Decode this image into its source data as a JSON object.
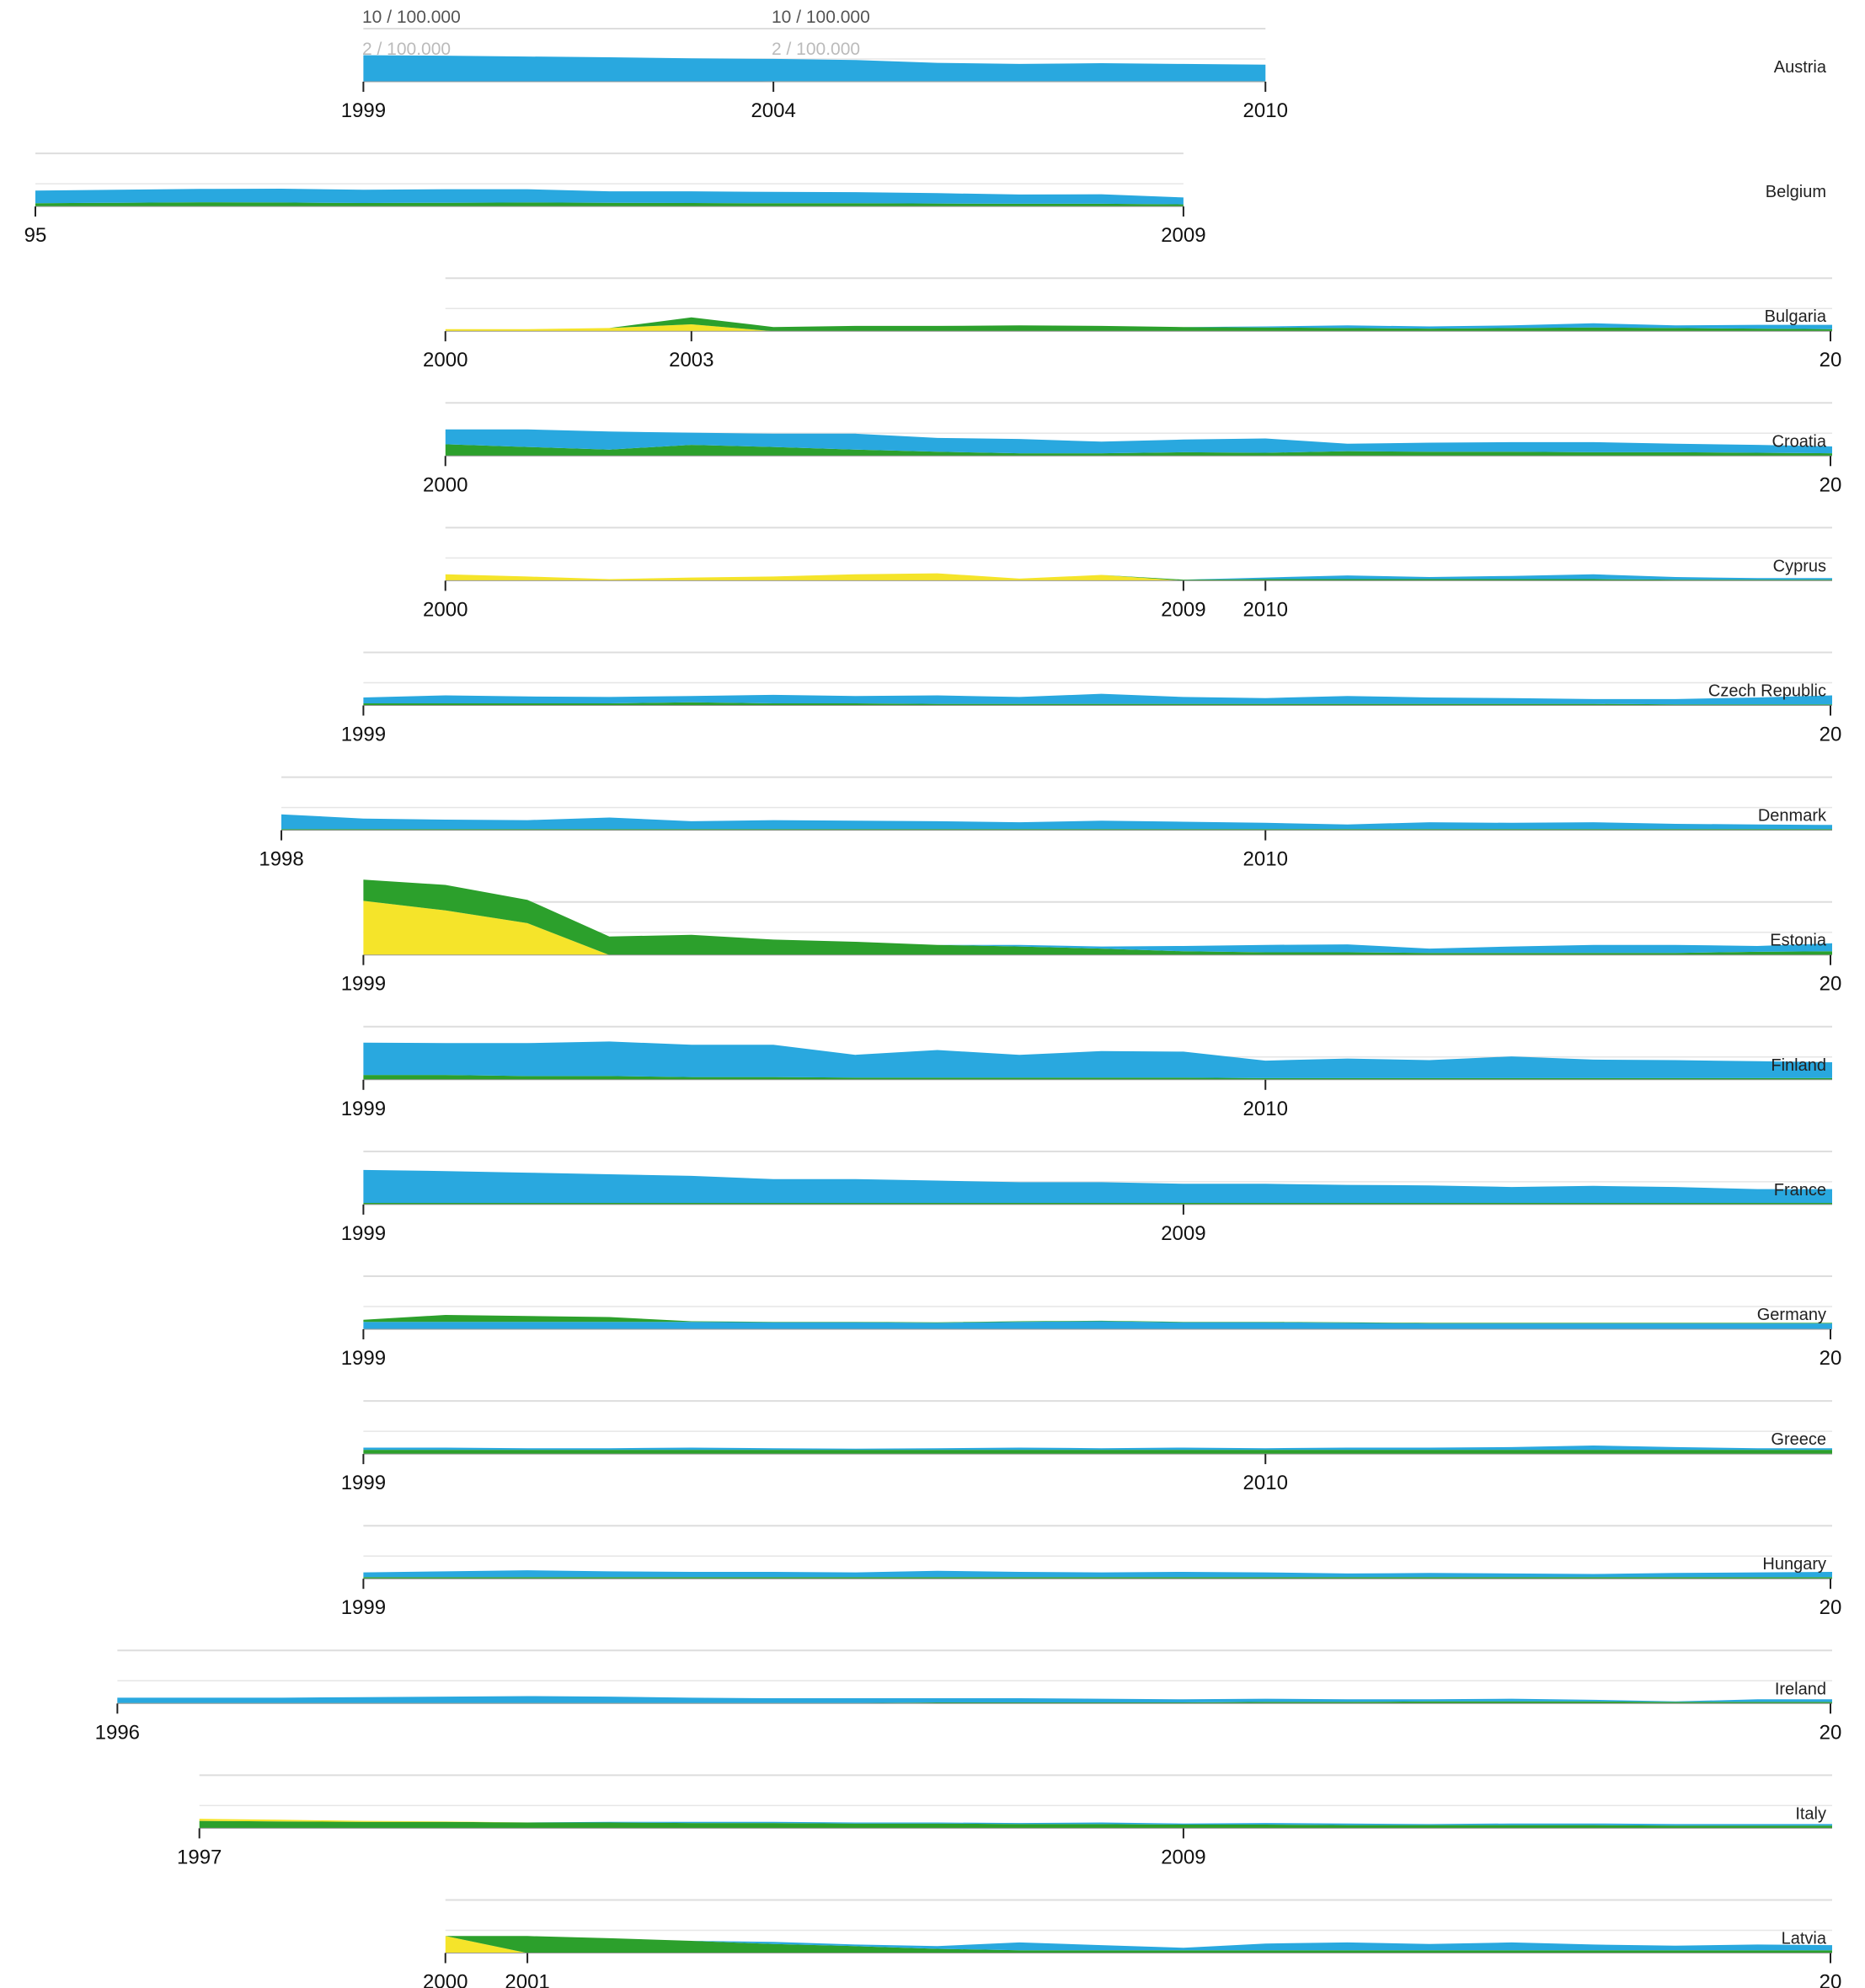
{
  "chart_data": {
    "type": "area",
    "title": "",
    "xlabel": "",
    "ylabel": "",
    "stacked": true,
    "colors": {
      "blue": "#29a8df",
      "green": "#2ca02c",
      "yellow": "#f5e42a"
    },
    "scale": {
      "outer_label": "10 / 100.000",
      "inner_label": "2 / 100.000",
      "outer_value": 10,
      "inner_value": 2
    },
    "grid": true,
    "legend": "none",
    "panels": [
      {
        "country": "Austria",
        "years": [
          1999,
          2000,
          2001,
          2002,
          2003,
          2004,
          2005,
          2006,
          2007,
          2008,
          2009,
          2010
        ],
        "ticks": [
          "1999",
          "2004",
          "2010"
        ],
        "layer_order": [
          "green",
          "blue"
        ],
        "green": [
          0,
          0,
          0,
          0,
          0,
          0.2,
          0.2,
          0.2,
          0.2,
          0.2,
          0.2,
          0.2
        ],
        "blue": [
          10,
          9.8,
          9.5,
          9.2,
          8.8,
          8.4,
          8.0,
          6.9,
          6.5,
          6.8,
          6.5,
          6.2
        ],
        "yellow": null
      },
      {
        "country": "Belgium",
        "years": [
          1995,
          1996,
          1997,
          1998,
          1999,
          2000,
          2001,
          2002,
          2003,
          2004,
          2005,
          2006,
          2007,
          2008,
          2009
        ],
        "ticks": [
          "95",
          "2009"
        ],
        "layer_order": [
          "green",
          "blue"
        ],
        "green": [
          1.2,
          1.4,
          1.6,
          1.5,
          1.3,
          1.4,
          1.5,
          1.4,
          1.3,
          1.2,
          1.2,
          1.1,
          1.0,
          1.0,
          0.8
        ],
        "blue": [
          4.8,
          4.9,
          5.0,
          5.2,
          5.0,
          5.1,
          5.0,
          4.3,
          4.4,
          4.3,
          4.2,
          3.9,
          3.5,
          3.6,
          2.6
        ],
        "yellow": null
      },
      {
        "country": "Bulgaria",
        "years": [
          2000,
          2001,
          2002,
          2003,
          2004,
          2005,
          2006,
          2007,
          2008,
          2009,
          2010,
          2011,
          2012,
          2013,
          2014,
          2015,
          2016,
          2017
        ],
        "ticks": [
          "2000",
          "2003",
          "20"
        ],
        "layer_order": [
          "green",
          "blue"
        ],
        "yellow": [
          0.8,
          0.8,
          1.2,
          2.6,
          0,
          0,
          0,
          0,
          0,
          0,
          0,
          0,
          0,
          0,
          0,
          0,
          0,
          0
        ],
        "green": [
          0,
          0,
          0,
          2.6,
          1.6,
          2.0,
          2.0,
          2.2,
          2.0,
          1.6,
          1.4,
          1.2,
          1.0,
          1.2,
          1.4,
          1.2,
          1.0,
          0.8
        ],
        "blue": [
          0,
          0,
          0,
          0,
          0,
          0,
          0,
          0,
          0,
          0,
          0.4,
          1.0,
          0.8,
          1.0,
          1.6,
          1.0,
          1.4,
          1.6
        ]
      },
      {
        "country": "Croatia",
        "years": [
          2000,
          2001,
          2002,
          2003,
          2004,
          2005,
          2006,
          2007,
          2008,
          2009,
          2010,
          2011,
          2012,
          2013,
          2014,
          2015,
          2016,
          2017
        ],
        "ticks": [
          "2000",
          "20"
        ],
        "layer_order": [
          "green",
          "blue"
        ],
        "green": [
          4.4,
          3.4,
          2.4,
          4.2,
          3.4,
          2.4,
          1.6,
          1.0,
          1.0,
          1.4,
          1.2,
          1.8,
          1.6,
          1.6,
          1.4,
          1.4,
          1.2,
          1.0
        ],
        "blue": [
          5.6,
          6.6,
          6.8,
          4.6,
          5.0,
          6.0,
          5.2,
          5.4,
          4.4,
          4.8,
          5.4,
          2.8,
          3.4,
          3.6,
          3.8,
          3.2,
          3.0,
          2.6
        ],
        "yellow": null
      },
      {
        "country": "Cyprus",
        "years": [
          2000,
          2001,
          2002,
          2003,
          2004,
          2005,
          2006,
          2007,
          2008,
          2009,
          2010,
          2011,
          2012,
          2013,
          2014,
          2015,
          2016,
          2017
        ],
        "ticks": [
          "2000",
          "2009",
          "2010"
        ],
        "layer_order": [
          "green",
          "blue"
        ],
        "yellow": [
          2.4,
          1.6,
          0.6,
          1.2,
          1.6,
          2.4,
          2.8,
          0.8,
          2.2,
          0,
          0,
          0,
          0,
          0,
          0,
          0,
          0,
          0
        ],
        "green": [
          0,
          0,
          0,
          0,
          0,
          0,
          0,
          0,
          0,
          0.4,
          0.6,
          0.6,
          0.6,
          0.6,
          0.6,
          0.4,
          0.4,
          0.4
        ],
        "blue": [
          0,
          0,
          0,
          0,
          0,
          0,
          0,
          0,
          0,
          0,
          0.6,
          1.4,
          0.8,
          1.2,
          1.8,
          1.0,
          0.6,
          0.6
        ]
      },
      {
        "country": "Czech Republic",
        "years": [
          1999,
          2000,
          2001,
          2002,
          2003,
          2004,
          2005,
          2006,
          2007,
          2008,
          2009,
          2010,
          2011,
          2012,
          2013,
          2014,
          2015,
          2016,
          2017
        ],
        "ticks": [
          "1999",
          "20"
        ],
        "layer_order": [
          "green",
          "blue"
        ],
        "green": [
          0.8,
          0.8,
          0.8,
          0.8,
          1.2,
          0.8,
          0.8,
          0.6,
          0.6,
          0.6,
          0.6,
          0.6,
          0.6,
          0.6,
          0.6,
          0.6,
          0.4,
          0.4,
          0.4
        ],
        "blue": [
          2.2,
          3.0,
          2.6,
          2.4,
          2.4,
          3.2,
          2.8,
          3.2,
          2.6,
          3.8,
          2.6,
          2.2,
          3.0,
          2.4,
          2.2,
          1.8,
          2.0,
          2.6,
          3.4
        ],
        "yellow": null
      },
      {
        "country": "Denmark",
        "years": [
          1998,
          1999,
          2000,
          2001,
          2002,
          2003,
          2004,
          2005,
          2006,
          2007,
          2008,
          2009,
          2010,
          2011,
          2012,
          2013,
          2014,
          2015,
          2016,
          2017
        ],
        "ticks": [
          "1998",
          "2010"
        ],
        "layer_order": [
          "green",
          "blue"
        ],
        "green": [
          0.4,
          0.4,
          0.4,
          0.4,
          0.4,
          0.4,
          0.4,
          0.4,
          0.4,
          0.4,
          0.4,
          0.4,
          0.4,
          0.4,
          0.4,
          0.4,
          0.4,
          0.4,
          0.4,
          0.4
        ],
        "blue": [
          5.6,
          4.0,
          3.6,
          3.4,
          4.4,
          3.0,
          3.4,
          3.2,
          3.0,
          2.6,
          3.2,
          2.8,
          2.4,
          1.8,
          2.6,
          2.4,
          2.6,
          2.0,
          1.8,
          1.6
        ],
        "yellow": null
      },
      {
        "country": "Estonia",
        "years": [
          1999,
          2000,
          2001,
          2002,
          2003,
          2004,
          2005,
          2006,
          2007,
          2008,
          2009,
          2010,
          2011,
          2012,
          2013,
          2014,
          2015,
          2016,
          2017
        ],
        "ticks": [
          "1999",
          "20"
        ],
        "layer_order": [
          "green",
          "blue"
        ],
        "yellow": [
          20.4,
          16.8,
          12.0,
          0,
          0,
          0,
          0,
          0,
          0,
          0,
          0,
          0,
          0,
          0,
          0,
          0,
          0,
          0,
          0
        ],
        "green": [
          8.0,
          9.6,
          8.8,
          7.0,
          7.6,
          5.8,
          5.0,
          3.8,
          3.2,
          2.4,
          1.4,
          1.0,
          1.0,
          0.8,
          0.8,
          0.8,
          0.8,
          1.2,
          1.4
        ],
        "blue": [
          0,
          0,
          0,
          0,
          0,
          0,
          0,
          0,
          0.6,
          0.8,
          2.0,
          2.8,
          3.0,
          1.6,
          2.4,
          3.0,
          3.0,
          2.2,
          3.0
        ]
      },
      {
        "country": "Finland",
        "years": [
          1999,
          2000,
          2001,
          2002,
          2003,
          2004,
          2005,
          2006,
          2007,
          2008,
          2009,
          2010,
          2011,
          2012,
          2013,
          2014,
          2015,
          2016,
          2017
        ],
        "ticks": [
          "1999",
          "2010"
        ],
        "layer_order": [
          "green",
          "blue"
        ],
        "green": [
          1.8,
          1.8,
          1.4,
          1.4,
          1.0,
          1.0,
          0.8,
          0.8,
          0.8,
          0.8,
          0.8,
          0.6,
          0.6,
          0.6,
          0.6,
          0.6,
          0.6,
          0.6,
          0.6
        ],
        "blue": [
          12.2,
          12.0,
          12.4,
          13.0,
          12.2,
          12.2,
          8.6,
          10.4,
          8.6,
          10.0,
          9.8,
          6.6,
          7.4,
          6.8,
          8.2,
          7.0,
          6.8,
          6.4,
          6.0
        ],
        "yellow": null
      },
      {
        "country": "France",
        "years": [
          1999,
          2000,
          2001,
          2002,
          2003,
          2004,
          2005,
          2006,
          2007,
          2008,
          2009,
          2010,
          2011,
          2012,
          2013,
          2014,
          2015,
          2016,
          2017
        ],
        "ticks": [
          "1999",
          "2009"
        ],
        "layer_order": [
          "green",
          "blue"
        ],
        "green": [
          0.6,
          0.6,
          0.6,
          0.6,
          0.6,
          0.6,
          0.6,
          0.6,
          0.6,
          0.6,
          0.6,
          0.6,
          0.6,
          0.6,
          0.6,
          0.6,
          0.6,
          0.6,
          0.6
        ],
        "blue": [
          12.4,
          12.0,
          11.4,
          10.8,
          10.2,
          9.0,
          9.0,
          8.4,
          7.8,
          7.8,
          7.2,
          7.2,
          6.8,
          6.6,
          6.0,
          6.4,
          6.0,
          5.2,
          5.2
        ],
        "yellow": null
      },
      {
        "country": "Germany",
        "years": [
          1999,
          2000,
          2001,
          2002,
          2003,
          2004,
          2005,
          2006,
          2007,
          2008,
          2009,
          2010,
          2011,
          2012,
          2013,
          2014,
          2015,
          2016,
          2017
        ],
        "ticks": [
          "1999",
          "20"
        ],
        "layer_order": [
          "blue",
          "green"
        ],
        "green": [
          0.8,
          2.6,
          2.2,
          1.8,
          0.2,
          0.2,
          0.2,
          0.2,
          0.2,
          0.2,
          0.2,
          0.2,
          0.2,
          0.2,
          0.2,
          0.2,
          0.2,
          0.2,
          0.2
        ],
        "blue": [
          2.8,
          2.8,
          2.8,
          2.8,
          2.8,
          2.6,
          2.6,
          2.4,
          2.8,
          3.0,
          2.6,
          2.6,
          2.4,
          2.2,
          2.2,
          2.2,
          2.2,
          2.2,
          2.2
        ],
        "yellow": null
      },
      {
        "country": "Greece",
        "years": [
          1999,
          2000,
          2001,
          2002,
          2003,
          2004,
          2005,
          2006,
          2007,
          2008,
          2009,
          2010,
          2011,
          2012,
          2013,
          2014,
          2015,
          2016,
          2017
        ],
        "ticks": [
          "1999",
          "2010"
        ],
        "layer_order": [
          "green",
          "blue"
        ],
        "green": [
          1.6,
          1.6,
          1.6,
          1.6,
          1.6,
          1.6,
          1.6,
          1.6,
          1.6,
          1.6,
          1.6,
          1.6,
          1.6,
          1.6,
          1.6,
          1.6,
          1.6,
          1.6,
          1.6
        ],
        "blue": [
          0.8,
          0.8,
          0.6,
          0.6,
          0.8,
          0.6,
          0.4,
          0.6,
          0.8,
          0.6,
          0.8,
          0.6,
          0.8,
          0.8,
          1.0,
          1.6,
          1.0,
          0.6,
          0.6
        ],
        "yellow": null
      },
      {
        "country": "Hungary",
        "years": [
          1999,
          2000,
          2001,
          2002,
          2003,
          2004,
          2005,
          2006,
          2007,
          2008,
          2009,
          2010,
          2011,
          2012,
          2013,
          2014,
          2015,
          2016,
          2017
        ],
        "ticks": [
          "1999",
          "20"
        ],
        "layer_order": [
          "green",
          "blue"
        ],
        "green": [
          0.6,
          0.6,
          0.6,
          0.6,
          0.6,
          0.6,
          0.6,
          0.6,
          0.6,
          0.6,
          0.6,
          0.6,
          0.6,
          0.6,
          0.6,
          0.6,
          0.6,
          0.6,
          0.6
        ],
        "blue": [
          1.8,
          2.2,
          2.6,
          2.2,
          2.0,
          2.0,
          1.8,
          2.4,
          2.0,
          1.8,
          2.0,
          1.8,
          1.4,
          1.6,
          1.4,
          1.2,
          1.6,
          1.8,
          2.0
        ],
        "yellow": null
      },
      {
        "country": "Ireland",
        "years": [
          1996,
          1997,
          1998,
          1999,
          2000,
          2001,
          2002,
          2003,
          2004,
          2005,
          2006,
          2007,
          2008,
          2009,
          2010,
          2011,
          2012,
          2013,
          2014,
          2015,
          2016,
          2017
        ],
        "ticks": [
          "1996",
          "20"
        ],
        "layer_order": [
          "green",
          "blue"
        ],
        "green": [
          0.2,
          0.2,
          0.2,
          0.2,
          0.2,
          0.2,
          0.2,
          0.2,
          0.2,
          0.2,
          0.4,
          0.4,
          0.4,
          0.4,
          0.6,
          0.6,
          0.8,
          0.8,
          0.8,
          0.6,
          0.6,
          0.6
        ],
        "blue": [
          2.0,
          2.0,
          2.0,
          2.2,
          2.4,
          2.6,
          2.4,
          2.0,
          1.8,
          1.8,
          1.6,
          1.6,
          1.4,
          1.2,
          1.2,
          1.0,
          0.8,
          1.0,
          0.6,
          0.2,
          1.0,
          1.0
        ],
        "yellow": null
      },
      {
        "country": "Italy",
        "years": [
          1997,
          1998,
          1999,
          2000,
          2001,
          2002,
          2003,
          2004,
          2005,
          2006,
          2007,
          2008,
          2009,
          2010,
          2011,
          2012,
          2013,
          2014,
          2015,
          2016,
          2017
        ],
        "ticks": [
          "1997",
          "2009"
        ],
        "layer_order": [
          "green",
          "blue"
        ],
        "yellow": [
          0.8,
          0.6,
          0.4,
          0.2,
          0,
          0,
          0,
          0,
          0,
          0,
          0,
          0,
          0,
          0,
          0,
          0,
          0,
          0,
          0,
          0,
          0
        ],
        "green": [
          2.8,
          2.6,
          2.4,
          2.4,
          2.2,
          2.2,
          2.0,
          2.0,
          1.8,
          1.8,
          1.6,
          1.6,
          1.4,
          1.4,
          1.2,
          1.2,
          1.2,
          1.2,
          1.0,
          1.0,
          1.0
        ],
        "blue": [
          0,
          0,
          0,
          0,
          0,
          0.2,
          0.4,
          0.4,
          0.4,
          0.4,
          0.4,
          0.6,
          0.4,
          0.6,
          0.6,
          0.4,
          0.6,
          0.6,
          0.6,
          0.6,
          0.6
        ],
        "yellow_on_top": true
      },
      {
        "country": "Latvia",
        "years": [
          2000,
          2001,
          2002,
          2003,
          2004,
          2005,
          2006,
          2007,
          2008,
          2009,
          2010,
          2011,
          2012,
          2013,
          2014,
          2015,
          2016,
          2017
        ],
        "ticks": [
          "2000",
          "2001",
          "20"
        ],
        "layer_order": [
          "green",
          "blue"
        ],
        "yellow": [
          6.4,
          0,
          0,
          0,
          0,
          0,
          0,
          0,
          0,
          0,
          0,
          0,
          0,
          0,
          0,
          0,
          0,
          0
        ],
        "green": [
          0,
          6.4,
          5.6,
          4.6,
          3.4,
          2.6,
          1.6,
          1.0,
          1.0,
          1.0,
          1.0,
          1.0,
          1.0,
          1.0,
          1.0,
          1.0,
          1.0,
          1.0
        ],
        "blue": [
          0,
          0,
          0,
          0,
          0.8,
          0.6,
          1.0,
          3.0,
          2.0,
          1.0,
          2.6,
          3.0,
          2.4,
          3.0,
          2.2,
          1.8,
          2.2,
          2.0
        ]
      }
    ]
  }
}
